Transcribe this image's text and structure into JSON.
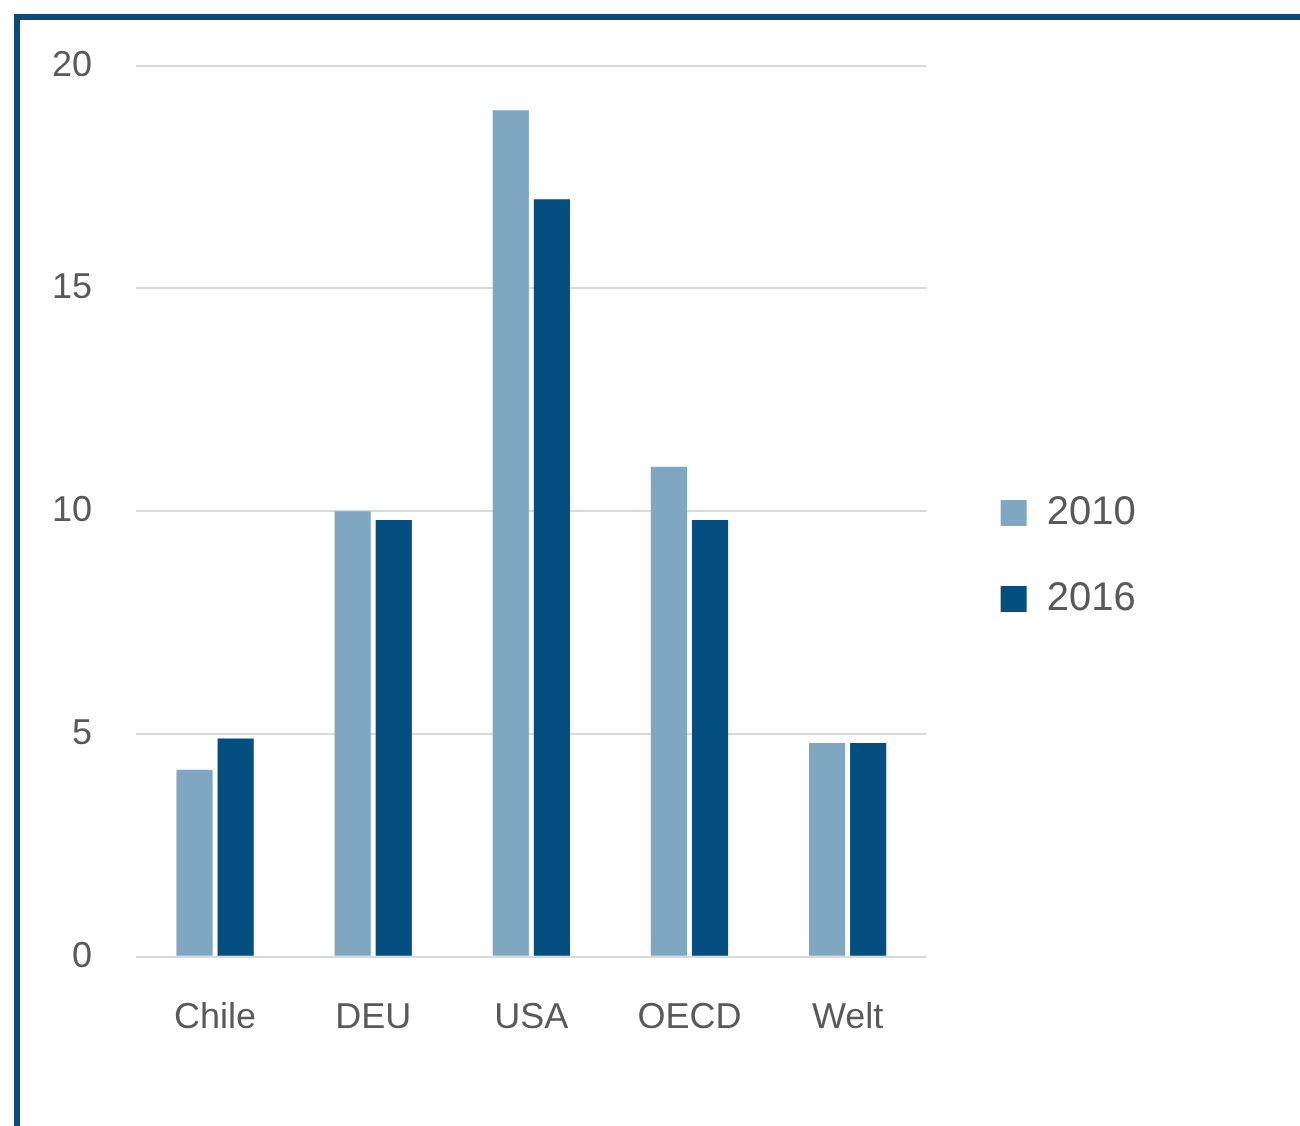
{
  "chart_data": {
    "type": "bar",
    "categories": [
      "Chile",
      "DEU",
      "USA",
      "OECD",
      "Welt"
    ],
    "series": [
      {
        "name": "2010",
        "color": "#80a7c2",
        "values": [
          4.2,
          10.0,
          19.0,
          11.0,
          4.8
        ]
      },
      {
        "name": "2016",
        "color": "#044f80",
        "values": [
          4.9,
          9.8,
          17.0,
          9.8,
          4.8
        ]
      }
    ],
    "ylim": [
      0,
      20
    ],
    "yticks": [
      0,
      5,
      10,
      15,
      20
    ],
    "grid": "y",
    "legend": "right"
  }
}
